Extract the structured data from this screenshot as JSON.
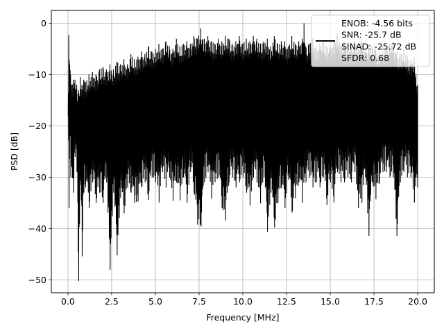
{
  "chart_data": {
    "type": "line",
    "title": "",
    "xlabel": "Frequency [MHz]",
    "ylabel": "PSD [dB]",
    "xlim": [
      -0.95,
      20.95
    ],
    "ylim": [
      -52.5,
      2.5
    ],
    "xticks": [
      0.0,
      2.5,
      5.0,
      7.5,
      10.0,
      12.5,
      15.0,
      17.5,
      20.0
    ],
    "xtick_labels": [
      "0.0",
      "2.5",
      "5.0",
      "7.5",
      "10.0",
      "12.5",
      "15.0",
      "17.5",
      "20.0"
    ],
    "yticks": [
      0,
      -10,
      -20,
      -30,
      -40,
      -50
    ],
    "ytick_labels": [
      "0",
      "−10",
      "−20",
      "−30",
      "−40",
      "−50"
    ],
    "grid": true,
    "legend": {
      "placement": "upper-right",
      "lines": [
        "ENOB: -4.56 bits",
        "SNR: -25.7 dB",
        "SINAD: -25.72 dB",
        "SFDR: 0.68"
      ]
    },
    "series": [
      {
        "color": "#000000",
        "x": [
          0.0,
          0.05,
          0.1,
          0.15,
          0.2,
          0.3,
          0.4,
          0.5,
          0.6,
          0.7,
          0.8,
          0.9,
          1.0,
          1.2,
          1.4,
          1.6,
          1.8,
          2.0,
          2.2,
          2.4,
          2.6,
          2.8,
          3.0,
          3.2,
          3.4,
          3.6,
          3.8,
          4.0,
          4.2,
          4.4,
          4.6,
          4.8,
          5.0,
          5.2,
          5.4,
          5.6,
          5.8,
          6.0,
          6.2,
          6.4,
          6.6,
          6.8,
          7.0,
          7.2,
          7.4,
          7.6,
          7.8,
          8.0,
          8.2,
          8.4,
          8.6,
          8.8,
          9.0,
          9.2,
          9.4,
          9.6,
          9.8,
          10.0,
          10.2,
          10.4,
          10.6,
          10.8,
          11.0,
          11.2,
          11.4,
          11.6,
          11.8,
          12.0,
          12.2,
          12.4,
          12.6,
          12.8,
          13.0,
          13.2,
          13.4,
          13.5,
          13.6,
          13.8,
          14.0,
          14.2,
          14.4,
          14.6,
          14.8,
          15.0,
          15.2,
          15.4,
          15.6,
          15.8,
          16.0,
          16.2,
          16.4,
          16.6,
          16.8,
          17.0,
          17.2,
          17.4,
          17.6,
          17.8,
          18.0,
          18.2,
          18.4,
          18.6,
          18.8,
          19.0,
          19.2,
          19.4,
          19.6,
          19.8,
          20.0
        ],
        "upper": [
          -18,
          -2.3,
          -8,
          -10,
          -12,
          -11,
          -11,
          -12,
          -13,
          -10.5,
          -12,
          -11,
          -11.5,
          -10,
          -9.5,
          -10,
          -9,
          -8.5,
          -9,
          -8,
          -9,
          -7.5,
          -8,
          -7,
          -8,
          -6,
          -7,
          -6.5,
          -5.5,
          -6,
          -4.5,
          -5.5,
          -5,
          -4,
          -5,
          -3.5,
          -4.5,
          -5,
          -3,
          -4.5,
          -4,
          -3.5,
          -4,
          -2.5,
          -3,
          -1,
          -3,
          -2.5,
          -3.5,
          -4,
          -3,
          -3.5,
          -2.5,
          -3,
          -4,
          -3.5,
          -2.5,
          -4,
          -3,
          -3.5,
          -2.5,
          -3,
          -4,
          -3.5,
          -3,
          -4.5,
          -2.5,
          -4,
          -3.5,
          -3.5,
          -4.5,
          -2.5,
          -4,
          -3.5,
          -3,
          0,
          -4.5,
          -4,
          -3,
          -4.5,
          -4,
          -3.5,
          -4.5,
          -4,
          -3.5,
          -2,
          -4.5,
          -3.5,
          -4,
          -4.5,
          -3.5,
          -4,
          -3,
          -5,
          -4,
          -4.5,
          -5,
          -5.5,
          -4.5,
          -5,
          -4,
          -3.5,
          -5.5,
          -6,
          -5,
          -6.5,
          -7,
          -6.5,
          -12
        ],
        "lower": [
          -18,
          -36,
          -22,
          -30,
          -28,
          -33,
          -26,
          -29,
          -50.2,
          -30,
          -45.4,
          -33,
          -32,
          -36,
          -31,
          -35,
          -33,
          -35,
          -31,
          -48,
          -33,
          -45.2,
          -34,
          -37,
          -32,
          -33,
          -35,
          -34.7,
          -32,
          -31,
          -34.4,
          -30,
          -31,
          -34.9,
          -29,
          -32,
          -30,
          -34.6,
          -31,
          -34.5,
          -30,
          -35,
          -29,
          -33,
          -39.2,
          -39.6,
          -31,
          -29,
          -34.2,
          -31,
          -30,
          -36,
          -38.4,
          -31,
          -30,
          -32,
          -31,
          -30,
          -33,
          -35.5,
          -30,
          -31,
          -35.1,
          -30,
          -40.6,
          -33,
          -39.8,
          -35,
          -32,
          -36,
          -30.5,
          -36.9,
          -34.1,
          -31,
          -35,
          -30,
          -31,
          -30,
          -32,
          -31,
          -32,
          -30,
          -35.4,
          -31,
          -34.9,
          -29,
          -31,
          -31,
          -30,
          -31,
          -29,
          -36,
          -35,
          -30,
          -41.4,
          -31,
          -34.3,
          -31,
          -29,
          -29,
          -30,
          -30,
          -41.4,
          -31,
          -29,
          -30,
          -30,
          -34.9,
          -32
        ]
      }
    ]
  }
}
